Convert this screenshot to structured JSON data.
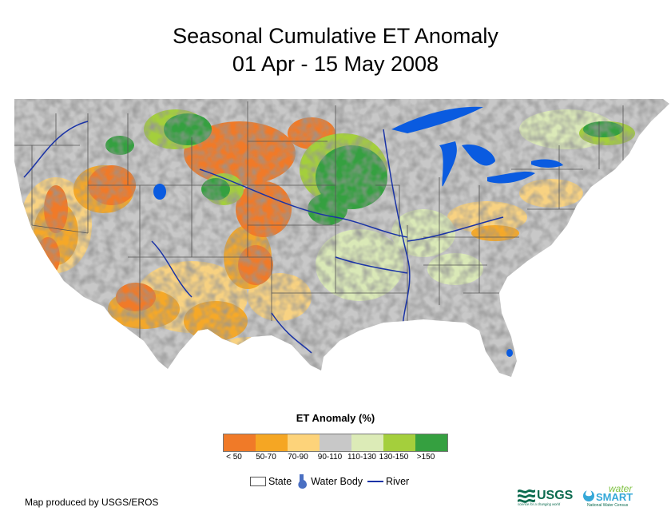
{
  "title_line1": "Seasonal Cumulative ET Anomaly",
  "title_line2": "01 Apr - 15 May 2008",
  "legend": {
    "title": "ET Anomaly (%)",
    "classes": [
      {
        "label": "< 50",
        "color": "#f07a28"
      },
      {
        "label": "50-70",
        "color": "#f5a623"
      },
      {
        "label": "70-90",
        "color": "#fdd37a"
      },
      {
        "label": "90-110",
        "color": "#c8c8c8"
      },
      {
        "label": "110-130",
        "color": "#dcebb7"
      },
      {
        "label": "130-150",
        "color": "#a4cf3c"
      },
      {
        "label": ">150",
        "color": "#35a040"
      }
    ]
  },
  "map_key": {
    "state": "State",
    "water_body": "Water Body",
    "river": "River"
  },
  "colors": {
    "water": "#0a5be0",
    "river": "#1a33a6",
    "state_border": "#555555"
  },
  "credit": "Map produced by USGS/EROS",
  "logos": {
    "usgs": "USGS",
    "usgs_tagline": "science for a changing world",
    "water": "water",
    "smart": "SMART",
    "ws_tagline": "National Water Census"
  }
}
